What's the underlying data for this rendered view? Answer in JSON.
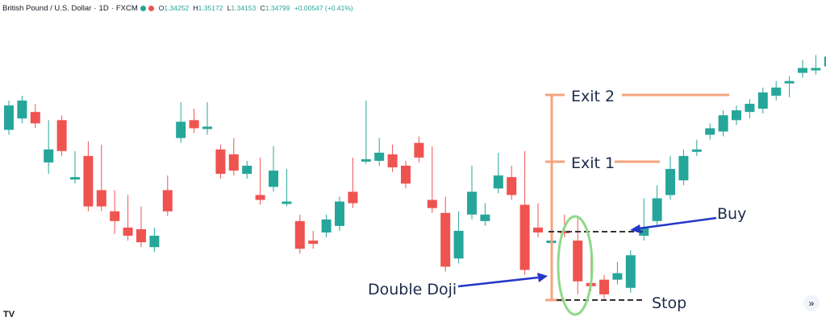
{
  "header": {
    "symbol": "British Pound / U.S. Dollar",
    "interval": "1D",
    "exchange": "FXCM",
    "ohlc": {
      "o": "1.34252",
      "h": "1.35172",
      "l": "1.34153",
      "c": "1.34799",
      "change": "+0.00547 (+0.41%)"
    }
  },
  "colors": {
    "up": "#26a69a",
    "down": "#ef5350",
    "orange": "#f4a37e",
    "circle": "#8fd98a",
    "arrow": "#2437c8",
    "dash": "#333333"
  },
  "annotations": {
    "exit2": "Exit 2",
    "exit1": "Exit 1",
    "buy": "Buy",
    "stop": "Stop",
    "double_doji": "Double Doji"
  },
  "icons": {
    "logo": "tradingview-logo-icon",
    "scroll": "scroll-to-latest-icon"
  },
  "chart_data": {
    "type": "candlestick",
    "ylim": [
      0,
      100
    ],
    "candles": [
      [
        5,
        8,
        13,
        20
      ],
      [
        12,
        12,
        22,
        23
      ],
      [
        16,
        10,
        18,
        9
      ],
      [
        -15,
        8,
        -19,
        -7
      ],
      [
        11,
        5,
        -4,
        -8
      ],
      [
        -25,
        -11,
        -21,
        -24
      ],
      [
        -11,
        -5,
        -33,
        -42
      ],
      [
        -32,
        -7,
        -36,
        -42
      ],
      [
        -45,
        -35,
        -56,
        -51
      ],
      [
        -55,
        -38,
        -57,
        -60
      ],
      [
        -56,
        -45,
        -53,
        -64
      ],
      [
        -67,
        -58,
        -63,
        -60
      ],
      [
        -32,
        -26,
        -33,
        -45
      ],
      [
        0,
        19,
        11,
        10
      ],
      [
        11,
        15,
        12,
        6
      ],
      [
        6,
        19,
        5,
        7
      ],
      [
        -7,
        -7,
        -10,
        -22
      ],
      [
        -10,
        -3,
        -17,
        -20
      ],
      [
        -22,
        -18,
        -21,
        -17
      ],
      [
        -35,
        -15,
        -37,
        -38
      ],
      [
        -30,
        -8,
        -19,
        -20
      ],
      [
        -39,
        -22,
        -22,
        -39
      ],
      [
        -51,
        -50,
        -66,
        -68
      ],
      [
        -63,
        -60,
        -65,
        -65
      ],
      [
        -58,
        -54,
        -51,
        -50
      ],
      [
        -54,
        -49,
        -45,
        -39
      ],
      [
        -33,
        -15,
        -37,
        -40
      ],
      [
        -13,
        20,
        -12,
        -13
      ],
      [
        -14,
        -3,
        -5,
        -9
      ],
      [
        -10,
        -7,
        -15,
        -18
      ],
      [
        -17,
        -19,
        -26,
        -28
      ],
      [
        -3,
        -2,
        -12,
        -12
      ],
      [
        -38,
        -8,
        -34,
        -43
      ],
      [
        -46,
        -39,
        -73,
        -79
      ],
      [
        -74,
        -48,
        -66,
        -57
      ],
      [
        -47,
        -20,
        -40,
        -33
      ],
      [
        -51,
        -43,
        -45,
        -47
      ],
      [
        -31,
        -12,
        -20,
        -23
      ],
      [
        -24,
        -20,
        -23,
        -35
      ],
      [
        -41,
        -11,
        -57,
        -81
      ],
      [
        -55,
        -43,
        -51,
        -58
      ],
      [
        -63,
        -43,
        -58,
        -63
      ],
      [
        -57,
        -50,
        -55,
        -58
      ],
      [
        -63,
        -51,
        -93,
        -88
      ],
      [
        -89,
        -66,
        -88,
        -91
      ],
      [
        -87,
        -87,
        -89,
        -96
      ],
      [
        -87,
        -79,
        -86,
        -83
      ],
      [
        -92,
        -77,
        -75,
        -72
      ],
      [
        -60,
        -40,
        -50,
        -55
      ],
      [
        -51,
        -32,
        -37,
        -37
      ],
      [
        -35,
        -14,
        -24,
        -19
      ],
      [
        -26,
        -10,
        -17,
        -11
      ],
      [
        -8,
        -4,
        -6,
        -7
      ],
      [
        2,
        6,
        4,
        6
      ],
      [
        4,
        13,
        7,
        14
      ],
      [
        11,
        12,
        15,
        17
      ],
      [
        16,
        18,
        15,
        21
      ],
      [
        18,
        23,
        27,
        28
      ],
      [
        26,
        32,
        29,
        31
      ],
      [
        35,
        28,
        32,
        35
      ],
      [
        40,
        45,
        44,
        43
      ],
      [
        42,
        48,
        44,
        43
      ],
      [
        44,
        52,
        48,
        50
      ],
      [
        58,
        61,
        58,
        60
      ]
    ]
  }
}
